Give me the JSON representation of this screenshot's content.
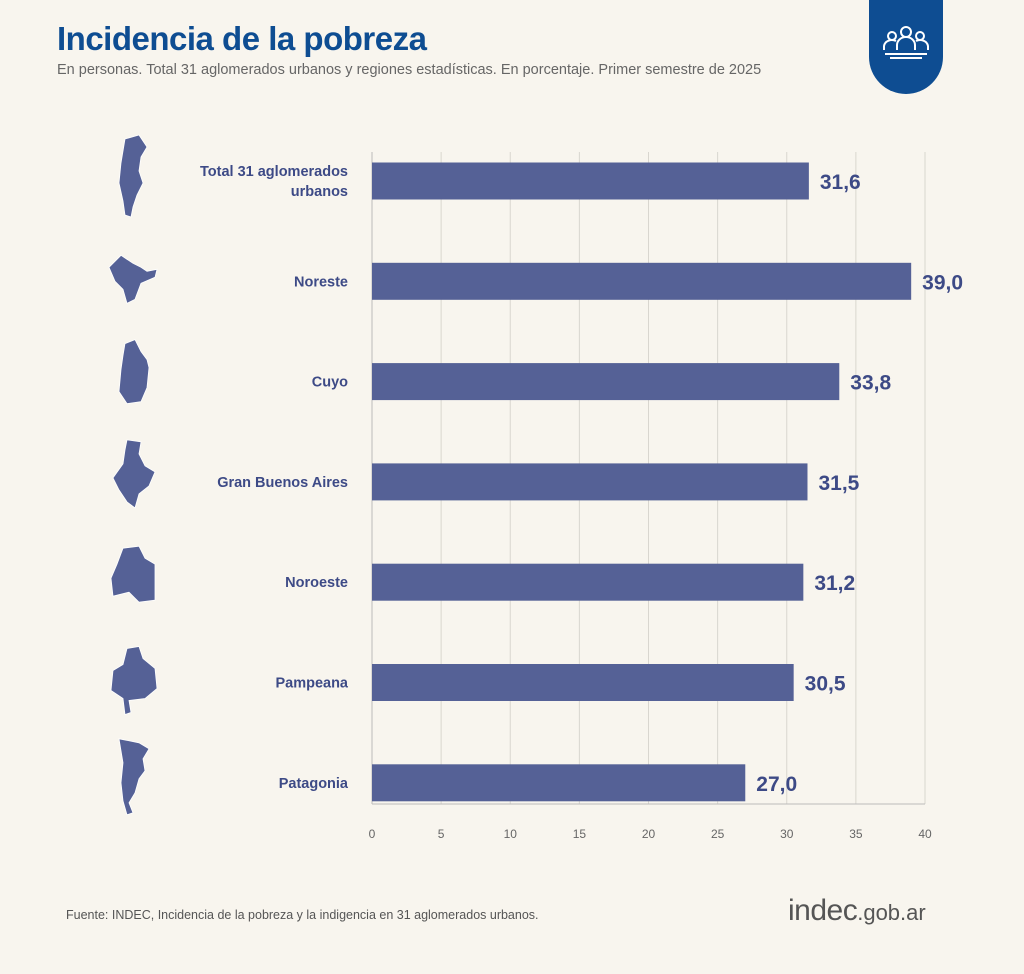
{
  "header": {
    "title": "Incidencia de la pobreza",
    "subtitle": "En personas. Total 31 aglomerados urbanos y regiones estadísticas. En porcentaje. Primer semestre de 2025"
  },
  "badge": {
    "icon": "people-group-icon"
  },
  "chart_data": {
    "type": "bar",
    "orientation": "horizontal",
    "title": "Incidencia de la pobreza",
    "categories": [
      "Total 31 aglomerados urbanos",
      "Noreste",
      "Cuyo",
      "Gran Buenos Aires",
      "Noroeste",
      "Pampeana",
      "Patagonia"
    ],
    "category_lines": [
      [
        "Total 31 aglomerados",
        "urbanos"
      ],
      [
        "Noreste"
      ],
      [
        "Cuyo"
      ],
      [
        "Gran Buenos Aires"
      ],
      [
        "Noroeste"
      ],
      [
        "Pampeana"
      ],
      [
        "Patagonia"
      ]
    ],
    "values": [
      31.6,
      39.0,
      33.8,
      31.5,
      31.2,
      30.5,
      27.0
    ],
    "value_labels": [
      "31,6",
      "39,0",
      "33,8",
      "31,5",
      "31,2",
      "30,5",
      "27,0"
    ],
    "xlim": [
      0,
      40
    ],
    "xticks": [
      0,
      5,
      10,
      15,
      20,
      25,
      30,
      35,
      40
    ],
    "xlabel": "",
    "ylabel": "",
    "grid": true,
    "bar_color": "#556196",
    "label_color": "#3d4a86",
    "grid_color": "#d9d6cf"
  },
  "footer": {
    "source": "Fuente: INDEC, Incidencia de la pobreza y la indigencia en 31 aglomerados urbanos.",
    "logo_main": "indec",
    "logo_suffix": ".gob.ar"
  }
}
